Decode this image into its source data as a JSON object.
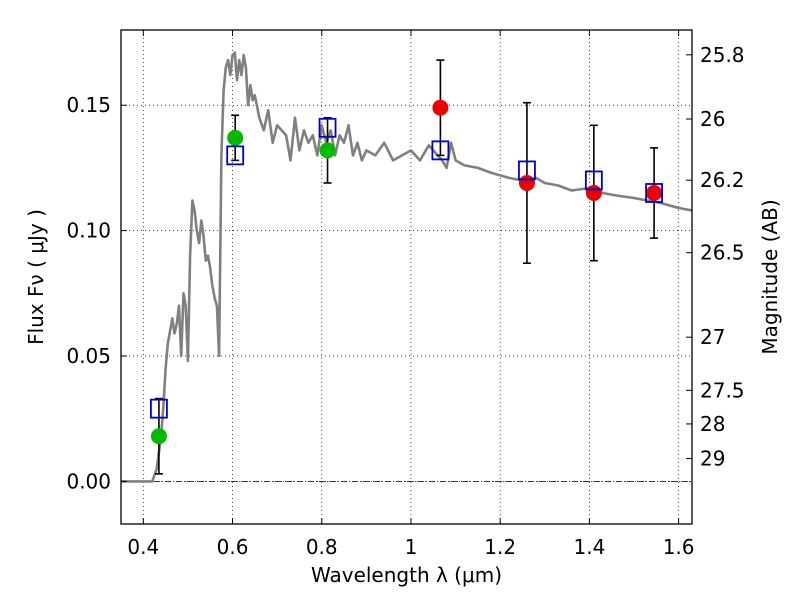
{
  "chart_data": {
    "type": "scatter",
    "title": "",
    "xlabel": "Wavelength  λ (μm)",
    "ylabel": "Flux  Fν  ( μJy )",
    "ylabel_right": "Magnitude (AB)",
    "xlim": [
      0.35,
      1.63
    ],
    "ylim": [
      -0.017,
      0.18
    ],
    "x_ticks": [
      0.4,
      0.6,
      0.8,
      1.0,
      1.2,
      1.4,
      1.6
    ],
    "x_tick_labels": [
      "0.4",
      "0.6",
      "0.8",
      "1",
      "1.2",
      "1.4",
      "1.6"
    ],
    "y_ticks": [
      0.0,
      0.05,
      0.1,
      0.15
    ],
    "y_tick_labels": [
      "0.00",
      "0.05",
      "0.10",
      "0.15"
    ],
    "mag_ticks": [
      {
        "label": "25.8",
        "flux": 0.1701
      },
      {
        "label": "26",
        "flux": 0.1445
      },
      {
        "label": "26.2",
        "flux": 0.1201
      },
      {
        "label": "26.5",
        "flux": 0.0912
      },
      {
        "label": "27",
        "flux": 0.0575
      },
      {
        "label": "27.5",
        "flux": 0.0363
      },
      {
        "label": "28",
        "flux": 0.0229
      },
      {
        "label": "29",
        "flux": 0.0091
      }
    ],
    "grid": "dotted",
    "zero_line": 0.0,
    "colors": {
      "model": "#808080",
      "observed": "#000000",
      "optical_points": "#00bb00",
      "nir_points": "#ee0000",
      "synthetic": "#0000cc"
    },
    "series": [
      {
        "kind": "line",
        "x": [
          0.35,
          0.42,
          0.43,
          0.44,
          0.445,
          0.45,
          0.455,
          0.46,
          0.465,
          0.47,
          0.475,
          0.48,
          0.485,
          0.49,
          0.495,
          0.5,
          0.505,
          0.51,
          0.515,
          0.52,
          0.525,
          0.53,
          0.535,
          0.54,
          0.545,
          0.55,
          0.555,
          0.56,
          0.565,
          0.57,
          0.575,
          0.58,
          0.585,
          0.59,
          0.595,
          0.6,
          0.605,
          0.61,
          0.615,
          0.62,
          0.625,
          0.63,
          0.635,
          0.64,
          0.645,
          0.65,
          0.66,
          0.67,
          0.68,
          0.69,
          0.7,
          0.71,
          0.72,
          0.73,
          0.74,
          0.75,
          0.76,
          0.77,
          0.78,
          0.79,
          0.8,
          0.81,
          0.82,
          0.83,
          0.84,
          0.85,
          0.86,
          0.87,
          0.88,
          0.89,
          0.9,
          0.92,
          0.94,
          0.96,
          0.98,
          1.0,
          1.02,
          1.04,
          1.06,
          1.07,
          1.08,
          1.09,
          1.1,
          1.12,
          1.15,
          1.18,
          1.2,
          1.22,
          1.25,
          1.28,
          1.3,
          1.33,
          1.36,
          1.4,
          1.43,
          1.46,
          1.5,
          1.53,
          1.56,
          1.6,
          1.63
        ],
        "y": [
          0.0,
          0.0,
          0.005,
          0.018,
          0.03,
          0.045,
          0.055,
          0.06,
          0.065,
          0.059,
          0.063,
          0.07,
          0.05,
          0.075,
          0.07,
          0.048,
          0.09,
          0.112,
          0.108,
          0.1,
          0.095,
          0.104,
          0.098,
          0.088,
          0.09,
          0.085,
          0.078,
          0.073,
          0.07,
          0.05,
          0.13,
          0.156,
          0.165,
          0.168,
          0.162,
          0.17,
          0.171,
          0.16,
          0.168,
          0.162,
          0.17,
          0.165,
          0.15,
          0.158,
          0.152,
          0.154,
          0.145,
          0.14,
          0.148,
          0.135,
          0.142,
          0.14,
          0.138,
          0.128,
          0.145,
          0.132,
          0.14,
          0.135,
          0.138,
          0.13,
          0.142,
          0.135,
          0.14,
          0.13,
          0.138,
          0.135,
          0.142,
          0.13,
          0.135,
          0.128,
          0.132,
          0.13,
          0.135,
          0.128,
          0.13,
          0.132,
          0.128,
          0.134,
          0.13,
          0.128,
          0.125,
          0.135,
          0.128,
          0.126,
          0.125,
          0.123,
          0.122,
          0.121,
          0.12,
          0.121,
          0.119,
          0.118,
          0.116,
          0.117,
          0.115,
          0.114,
          0.113,
          0.112,
          0.111,
          0.109,
          0.108
        ],
        "name": ""
      },
      {
        "kind": "errorbar",
        "x": [
          0.435,
          0.606,
          0.813,
          1.066,
          1.26,
          1.41,
          1.545
        ],
        "y": [
          0.018,
          0.137,
          0.132,
          0.149,
          0.119,
          0.115,
          0.115
        ],
        "yerr": [
          0.015,
          0.009,
          0.013,
          0.019,
          0.032,
          0.027,
          0.018
        ],
        "name": ""
      },
      {
        "kind": "points",
        "marker": "circle",
        "color": "#00bb00",
        "x": [
          0.435,
          0.606,
          0.813
        ],
        "y": [
          0.018,
          0.137,
          0.132
        ],
        "name": ""
      },
      {
        "kind": "points",
        "marker": "circle",
        "color": "#ee0000",
        "x": [
          1.066,
          1.26,
          1.41,
          1.545
        ],
        "y": [
          0.149,
          0.119,
          0.115,
          0.115
        ],
        "name": ""
      },
      {
        "kind": "points",
        "marker": "open-square",
        "color": "#0000cc",
        "x": [
          0.435,
          0.606,
          0.813,
          1.066,
          1.26,
          1.41,
          1.545
        ],
        "y": [
          0.029,
          0.13,
          0.141,
          0.132,
          0.124,
          0.12,
          0.115
        ],
        "name": ""
      }
    ]
  }
}
